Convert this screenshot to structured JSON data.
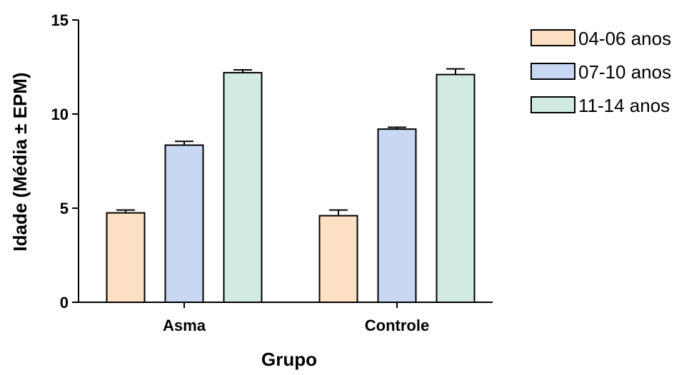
{
  "colors": {
    "series_04_06": "#fde0c4",
    "series_07_10": "#c8d8f2",
    "series_11_14": "#d2ebe0",
    "axis": "#000000"
  },
  "chart_data": {
    "type": "bar",
    "xlabel": "Grupo",
    "ylabel": "Idade (Média ± EPM)",
    "ylim": [
      0,
      15
    ],
    "yticks": [
      0,
      5,
      10,
      15
    ],
    "categories": [
      "Asma",
      "Controle"
    ],
    "legend_position": "top-right",
    "series": [
      {
        "name": "04-06 anos",
        "values": [
          4.75,
          4.6
        ],
        "errors": [
          0.15,
          0.3
        ]
      },
      {
        "name": "07-10 anos",
        "values": [
          8.35,
          9.2
        ],
        "errors": [
          0.2,
          0.1
        ]
      },
      {
        "name": "11-14 anos",
        "values": [
          12.2,
          12.1
        ],
        "errors": [
          0.15,
          0.3
        ]
      }
    ]
  }
}
